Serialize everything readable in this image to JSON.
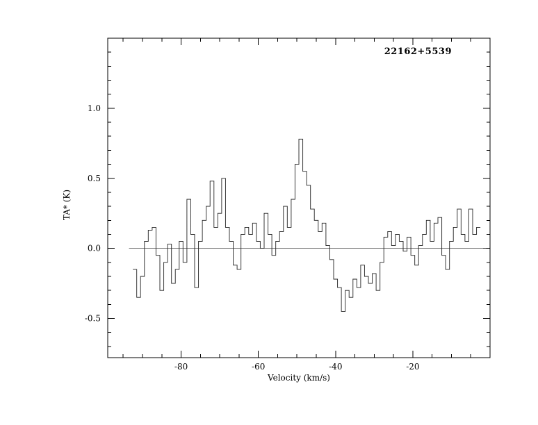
{
  "figure": {
    "background": "#ffffff",
    "line_color": "#000000"
  },
  "chart_data": {
    "type": "line",
    "style": "histogram-step",
    "title": "22162+5539",
    "xlabel": "Velocity (km/s)",
    "ylabel": "TA* (K)",
    "xlim": [
      -99,
      0
    ],
    "ylim": [
      -0.78,
      1.5
    ],
    "grid": false,
    "legend": "none",
    "x_ticks": [
      -80,
      -60,
      -40,
      -20
    ],
    "x_tick_labels": [
      "-80",
      "-60",
      "-40",
      "-20"
    ],
    "x_minor_step": 5,
    "y_ticks": [
      -0.5,
      0,
      0.5,
      1
    ],
    "y_tick_labels": [
      "-0.5",
      "0.0",
      "0.5",
      "1.0"
    ],
    "y_minor_step": 0.1,
    "zero_line": {
      "y": 0,
      "x_from": -93.5,
      "x_to": -1
    },
    "series": [
      {
        "name": "spectrum",
        "x_start": -92,
        "x_step": 1,
        "values": [
          -0.15,
          -0.35,
          -0.2,
          0.05,
          0.13,
          0.15,
          -0.05,
          -0.3,
          -0.1,
          0.03,
          -0.25,
          -0.15,
          0.05,
          -0.1,
          0.35,
          0.1,
          -0.28,
          0.05,
          0.2,
          0.3,
          0.48,
          0.15,
          0.25,
          0.5,
          0.15,
          0.05,
          -0.12,
          -0.15,
          0.1,
          0.15,
          0.1,
          0.18,
          0.05,
          0.0,
          0.25,
          0.1,
          -0.05,
          0.05,
          0.12,
          0.3,
          0.15,
          0.35,
          0.6,
          0.78,
          0.55,
          0.45,
          0.28,
          0.2,
          0.12,
          0.18,
          0.02,
          -0.08,
          -0.22,
          -0.28,
          -0.45,
          -0.3,
          -0.35,
          -0.22,
          -0.28,
          -0.12,
          -0.2,
          -0.25,
          -0.18,
          -0.3,
          -0.1,
          0.08,
          0.12,
          0.02,
          0.1,
          0.05,
          -0.02,
          0.08,
          -0.05,
          -0.12,
          0.02,
          0.1,
          0.2,
          0.05,
          0.18,
          0.22,
          -0.05,
          -0.15,
          0.05,
          0.15,
          0.28,
          0.1,
          0.05,
          0.28,
          0.1,
          0.15
        ]
      }
    ]
  }
}
